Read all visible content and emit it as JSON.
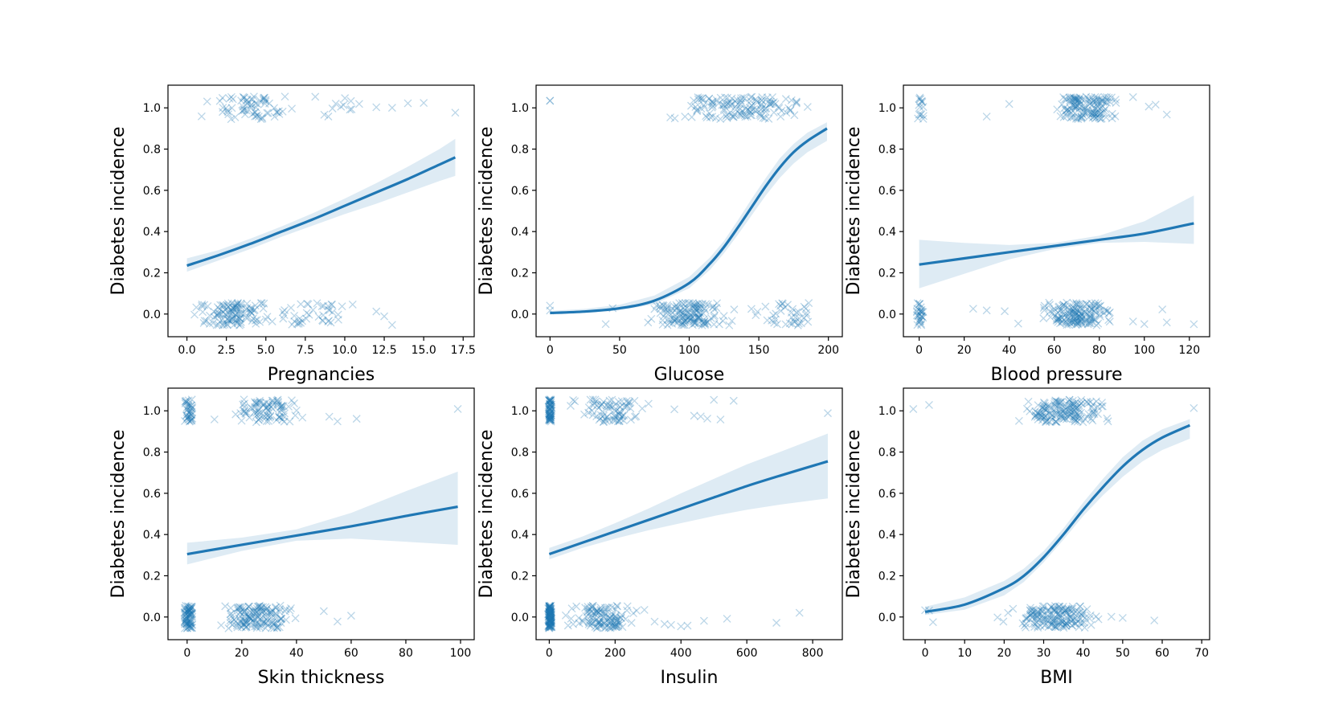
{
  "colors": {
    "series": "#1f77b4",
    "band": "#1f77b4"
  },
  "chart_data": [
    {
      "type": "scatter",
      "xlabel": "Pregnancies",
      "ylabel": "Diabetes incidence",
      "xlim": [
        -1.2,
        18.2
      ],
      "ylim": [
        -0.11,
        1.11
      ],
      "xticks": [
        0,
        2.5,
        5,
        7.5,
        10,
        12.5,
        15,
        17.5
      ],
      "xtick_labels": [
        "0.0",
        "2.5",
        "5.0",
        "7.5",
        "10.0",
        "12.5",
        "15.0",
        "17.5"
      ],
      "yticks": [
        0,
        0.2,
        0.4,
        0.6,
        0.8,
        1.0
      ],
      "ytick_labels": [
        "0.0",
        "0.2",
        "0.4",
        "0.6",
        "0.8",
        "1.0"
      ],
      "curve_x": [
        0,
        2,
        4,
        6,
        8,
        10,
        12,
        14,
        16,
        17
      ],
      "curve_y": [
        0.235,
        0.285,
        0.34,
        0.4,
        0.46,
        0.525,
        0.59,
        0.655,
        0.725,
        0.76
      ],
      "band_lower": [
        0.205,
        0.26,
        0.315,
        0.375,
        0.43,
        0.485,
        0.535,
        0.59,
        0.645,
        0.67
      ],
      "band_upper": [
        0.27,
        0.31,
        0.365,
        0.425,
        0.49,
        0.56,
        0.635,
        0.715,
        0.8,
        0.85
      ],
      "points_y1": {
        "clusters": [
          [
            0,
            8,
            70
          ],
          [
            8,
            11,
            12
          ]
        ],
        "outliers": [
          12,
          13,
          14,
          15,
          17
        ]
      },
      "points_y0": {
        "clusters": [
          [
            0,
            6,
            120
          ],
          [
            6,
            10,
            40
          ]
        ],
        "outliers": [
          10.5,
          12,
          12.5,
          13
        ]
      }
    },
    {
      "type": "scatter",
      "xlabel": "Glucose",
      "ylabel": "Diabetes incidence",
      "xlim": [
        -10,
        210
      ],
      "ylim": [
        -0.11,
        1.11
      ],
      "xticks": [
        0,
        50,
        100,
        150,
        200
      ],
      "xtick_labels": [
        "0",
        "50",
        "100",
        "150",
        "200"
      ],
      "yticks": [
        0,
        0.2,
        0.4,
        0.6,
        0.8,
        1.0
      ],
      "ytick_labels": [
        "0.0",
        "0.2",
        "0.4",
        "0.6",
        "0.8",
        "1.0"
      ],
      "curve_x": [
        0,
        25,
        50,
        75,
        100,
        115,
        125,
        135,
        145,
        155,
        165,
        175,
        185,
        199
      ],
      "curve_y": [
        0.005,
        0.012,
        0.028,
        0.065,
        0.15,
        0.245,
        0.325,
        0.42,
        0.52,
        0.62,
        0.71,
        0.785,
        0.84,
        0.9
      ],
      "band_lower": [
        0.002,
        0.006,
        0.018,
        0.048,
        0.125,
        0.215,
        0.295,
        0.385,
        0.48,
        0.575,
        0.66,
        0.73,
        0.785,
        0.84
      ],
      "band_upper": [
        0.015,
        0.025,
        0.045,
        0.09,
        0.18,
        0.275,
        0.355,
        0.455,
        0.56,
        0.66,
        0.755,
        0.825,
        0.88,
        0.93
      ],
      "points_y1": {
        "clusters": [
          [
            78,
            199,
            140
          ]
        ],
        "outliers": [
          0,
          0
        ]
      },
      "points_y0": {
        "clusters": [
          [
            60,
            140,
            150
          ],
          [
            140,
            197,
            40
          ]
        ],
        "outliers": [
          0,
          0,
          40,
          45
        ]
      }
    },
    {
      "type": "scatter",
      "xlabel": "Blood pressure",
      "ylabel": "Diabetes incidence",
      "xlim": [
        -7,
        129
      ],
      "ylim": [
        -0.11,
        1.11
      ],
      "xticks": [
        0,
        20,
        40,
        60,
        80,
        100,
        120
      ],
      "xtick_labels": [
        "0",
        "20",
        "40",
        "60",
        "80",
        "100",
        "120"
      ],
      "yticks": [
        0,
        0.2,
        0.4,
        0.6,
        0.8,
        1.0
      ],
      "ytick_labels": [
        "0.0",
        "0.2",
        "0.4",
        "0.6",
        "0.8",
        "1.0"
      ],
      "curve_x": [
        0,
        20,
        40,
        60,
        80,
        100,
        122
      ],
      "curve_y": [
        0.24,
        0.27,
        0.3,
        0.33,
        0.36,
        0.39,
        0.44
      ],
      "band_lower": [
        0.125,
        0.195,
        0.265,
        0.315,
        0.345,
        0.35,
        0.34
      ],
      "band_upper": [
        0.36,
        0.345,
        0.335,
        0.345,
        0.38,
        0.45,
        0.575
      ],
      "points_y1": {
        "clusters": [
          [
            -1,
            2,
            15
          ],
          [
            54,
            92,
            140
          ]
        ],
        "outliers": [
          30,
          40,
          95,
          102,
          105,
          110
        ]
      },
      "points_y0": {
        "clusters": [
          [
            -1,
            2,
            30
          ],
          [
            50,
            90,
            160
          ]
        ],
        "outliers": [
          24,
          30,
          38,
          44,
          95,
          100,
          108,
          110,
          122
        ]
      }
    },
    {
      "type": "scatter",
      "xlabel": "Skin thickness",
      "ylabel": "Diabetes incidence",
      "xlim": [
        -7,
        105
      ],
      "ylim": [
        -0.11,
        1.11
      ],
      "xticks": [
        0,
        20,
        40,
        60,
        80,
        100
      ],
      "xtick_labels": [
        "0",
        "20",
        "40",
        "60",
        "80",
        "100"
      ],
      "yticks": [
        0,
        0.2,
        0.4,
        0.6,
        0.8,
        1.0
      ],
      "ytick_labels": [
        "0.0",
        "0.2",
        "0.4",
        "0.6",
        "0.8",
        "1.0"
      ],
      "curve_x": [
        0,
        20,
        40,
        60,
        80,
        99
      ],
      "curve_y": [
        0.305,
        0.35,
        0.395,
        0.44,
        0.49,
        0.535
      ],
      "band_lower": [
        0.255,
        0.32,
        0.37,
        0.38,
        0.365,
        0.35
      ],
      "band_upper": [
        0.36,
        0.385,
        0.425,
        0.505,
        0.61,
        0.705
      ],
      "points_y1": {
        "clusters": [
          [
            -1,
            2,
            40
          ],
          [
            15,
            45,
            90
          ]
        ],
        "outliers": [
          10,
          52,
          55,
          62,
          99
        ]
      },
      "points_y0": {
        "clusters": [
          [
            -1,
            2,
            80
          ],
          [
            7,
            45,
            150
          ]
        ],
        "outliers": [
          50,
          55,
          60
        ]
      }
    },
    {
      "type": "scatter",
      "xlabel": "Insulin",
      "ylabel": "Diabetes incidence",
      "xlim": [
        -40,
        890
      ],
      "ylim": [
        -0.11,
        1.11
      ],
      "xticks": [
        0,
        200,
        400,
        600,
        800
      ],
      "xtick_labels": [
        "0",
        "200",
        "400",
        "600",
        "800"
      ],
      "yticks": [
        0,
        0.2,
        0.4,
        0.6,
        0.8,
        1.0
      ],
      "ytick_labels": [
        "0.0",
        "0.2",
        "0.4",
        "0.6",
        "0.8",
        "1.0"
      ],
      "curve_x": [
        0,
        100,
        200,
        300,
        400,
        500,
        600,
        700,
        846
      ],
      "curve_y": [
        0.305,
        0.36,
        0.415,
        0.47,
        0.525,
        0.58,
        0.635,
        0.685,
        0.755
      ],
      "band_lower": [
        0.28,
        0.335,
        0.38,
        0.42,
        0.455,
        0.49,
        0.52,
        0.545,
        0.575
      ],
      "band_upper": [
        0.335,
        0.39,
        0.455,
        0.525,
        0.6,
        0.67,
        0.74,
        0.8,
        0.89
      ],
      "points_y1": {
        "clusters": [
          [
            -5,
            10,
            70
          ],
          [
            50,
            330,
            80
          ]
        ],
        "outliers": [
          380,
          440,
          460,
          480,
          500,
          520,
          560,
          846
        ]
      },
      "points_y0": {
        "clusters": [
          [
            -5,
            10,
            120
          ],
          [
            20,
            300,
            120
          ]
        ],
        "outliers": [
          320,
          350,
          370,
          400,
          420,
          470,
          540,
          690,
          760
        ]
      }
    },
    {
      "type": "scatter",
      "xlabel": "BMI",
      "ylabel": "Diabetes incidence",
      "xlim": [
        -5.5,
        72
      ],
      "ylim": [
        -0.11,
        1.11
      ],
      "xticks": [
        0,
        10,
        20,
        30,
        40,
        50,
        60,
        70
      ],
      "xtick_labels": [
        "0",
        "10",
        "20",
        "30",
        "40",
        "50",
        "60",
        "70"
      ],
      "yticks": [
        0,
        0.2,
        0.4,
        0.6,
        0.8,
        1.0
      ],
      "ytick_labels": [
        "0.0",
        "0.2",
        "0.4",
        "0.6",
        "0.8",
        "1.0"
      ],
      "curve_x": [
        0,
        10,
        20,
        25,
        30,
        35,
        40,
        45,
        50,
        55,
        60,
        67
      ],
      "curve_y": [
        0.025,
        0.06,
        0.14,
        0.2,
        0.29,
        0.4,
        0.52,
        0.63,
        0.73,
        0.81,
        0.87,
        0.93
      ],
      "band_lower": [
        0.01,
        0.035,
        0.105,
        0.17,
        0.265,
        0.375,
        0.49,
        0.59,
        0.68,
        0.755,
        0.81,
        0.865
      ],
      "band_upper": [
        0.05,
        0.095,
        0.175,
        0.235,
        0.32,
        0.43,
        0.555,
        0.67,
        0.775,
        0.855,
        0.91,
        0.96
      ],
      "points_y1": {
        "clusters": [
          [
            22,
            50,
            160
          ]
        ],
        "outliers": [
          -3,
          1,
          68
        ]
      },
      "points_y0": {
        "clusters": [
          [
            17,
            48,
            170
          ]
        ],
        "outliers": [
          0,
          1,
          2,
          50,
          58
        ]
      }
    }
  ]
}
